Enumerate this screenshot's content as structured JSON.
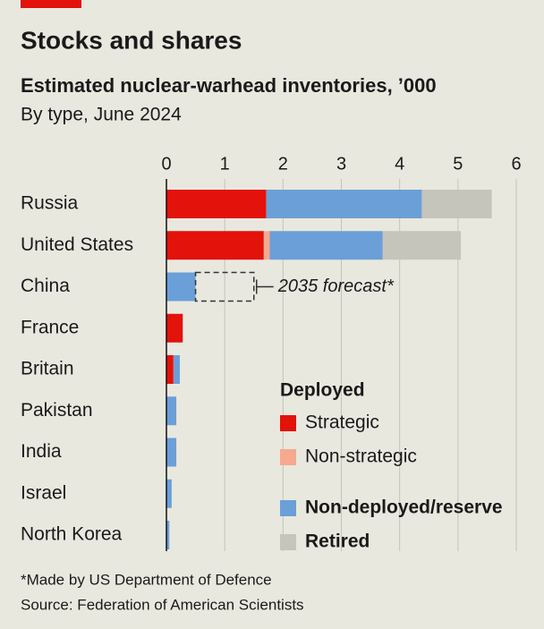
{
  "chart_data": {
    "type": "stacked_barh",
    "title": "Stocks and shares",
    "subtitle": "Estimated nuclear-warhead inventories, ’000",
    "subtitle2": "By type, June 2024",
    "categories": [
      "Russia",
      "United States",
      "China",
      "France",
      "Britain",
      "Pakistan",
      "India",
      "Israel",
      "North Korea"
    ],
    "series": [
      {
        "name": "Strategic",
        "color": "#e3120b",
        "values": [
          1.71,
          1.67,
          null,
          0.28,
          0.12,
          null,
          null,
          null,
          null
        ]
      },
      {
        "name": "Non-strategic",
        "color": "#f6a98e",
        "values": [
          null,
          0.1,
          null,
          null,
          null,
          null,
          null,
          null,
          null
        ]
      },
      {
        "name": "Non-deployed/reserve",
        "color": "#6b9fd8",
        "values": [
          2.67,
          1.94,
          0.5,
          null,
          0.11,
          0.17,
          0.17,
          0.09,
          0.05
        ]
      },
      {
        "name": "Retired",
        "color": "#c6c5bc",
        "values": [
          1.2,
          1.34,
          null,
          null,
          null,
          null,
          null,
          null,
          null
        ]
      }
    ],
    "legend_group_title": "Deployed",
    "annotations": [
      {
        "text": "2035 forecast*",
        "category": "China",
        "value": 1.5
      }
    ],
    "xlim": [
      0,
      6
    ],
    "xticks": [
      0,
      1,
      2,
      3,
      4,
      5,
      6
    ],
    "grid": true,
    "footnote": "*Made by US Department of Defence",
    "source": "Source: Federation of American Scientists"
  }
}
